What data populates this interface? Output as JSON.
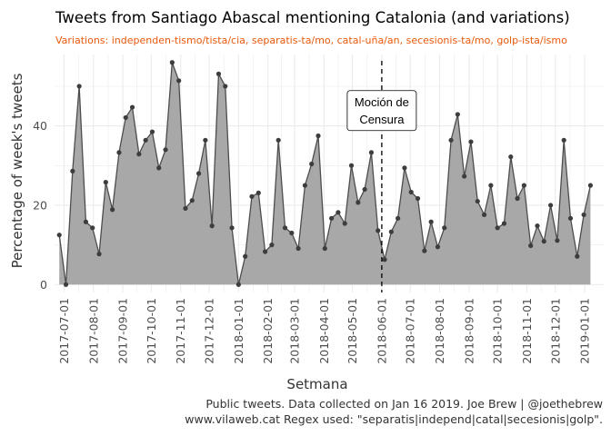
{
  "chart_data": {
    "type": "area",
    "title": "Tweets from Santiago Abascal mentioning Catalonia (and variations)",
    "subtitle": "Variations: independen-tismo/tista/cia, separatis-ta/mo, catal-uña/an, secesionis-ta/mo, golp-ista/ismo",
    "xlabel": "Setmana",
    "ylabel": "Percentage of week's tweets",
    "caption_line1": "Public tweets. Data collected on Jan 16 2019. Joe Brew | @joethebrew",
    "caption_line2": "www.vilaweb.cat Regex used: \"separatis|independ|catal|secesionis|golp\".",
    "x_ticks": [
      "2017-07-01",
      "2017-08-01",
      "2017-09-01",
      "2017-10-01",
      "2017-11-01",
      "2017-12-01",
      "2018-01-01",
      "2018-02-01",
      "2018-03-01",
      "2018-04-01",
      "2018-05-01",
      "2018-06-01",
      "2018-07-01",
      "2018-08-01",
      "2018-09-01",
      "2018-10-01",
      "2018-11-01",
      "2018-12-01",
      "2019-01-01"
    ],
    "y_ticks": [
      0,
      20,
      40
    ],
    "ylim": [
      -2,
      58
    ],
    "xlim": [
      "2017-06-21",
      "2019-01-21"
    ],
    "grid": true,
    "colors": {
      "area": "#a8a8a8",
      "line": "#4d4d4d",
      "points": "#3d3d3d",
      "grid": "#ebebeb",
      "subtitle": "#e8590c"
    },
    "annotation": {
      "date": "2018-06-01",
      "label_line1": "Moción de",
      "label_line2": "Censura",
      "y": 45
    },
    "x": [
      "2017-06-26",
      "2017-07-03",
      "2017-07-10",
      "2017-07-17",
      "2017-07-24",
      "2017-07-31",
      "2017-08-07",
      "2017-08-14",
      "2017-08-21",
      "2017-08-28",
      "2017-09-04",
      "2017-09-11",
      "2017-09-18",
      "2017-09-25",
      "2017-10-02",
      "2017-10-09",
      "2017-10-16",
      "2017-10-23",
      "2017-10-30",
      "2017-11-06",
      "2017-11-13",
      "2017-11-20",
      "2017-11-27",
      "2017-12-04",
      "2017-12-11",
      "2017-12-18",
      "2017-12-25",
      "2018-01-01",
      "2018-01-08",
      "2018-01-15",
      "2018-01-22",
      "2018-01-29",
      "2018-02-05",
      "2018-02-12",
      "2018-02-19",
      "2018-02-26",
      "2018-03-05",
      "2018-03-12",
      "2018-03-19",
      "2018-03-26",
      "2018-04-02",
      "2018-04-09",
      "2018-04-16",
      "2018-04-23",
      "2018-04-30",
      "2018-05-07",
      "2018-05-14",
      "2018-05-21",
      "2018-05-28",
      "2018-06-04",
      "2018-06-11",
      "2018-06-18",
      "2018-06-25",
      "2018-07-02",
      "2018-07-09",
      "2018-07-16",
      "2018-07-23",
      "2018-07-30",
      "2018-08-06",
      "2018-08-13",
      "2018-08-20",
      "2018-08-27",
      "2018-09-03",
      "2018-09-10",
      "2018-09-17",
      "2018-09-24",
      "2018-10-01",
      "2018-10-08",
      "2018-10-15",
      "2018-10-22",
      "2018-10-29",
      "2018-11-05",
      "2018-11-12",
      "2018-11-19",
      "2018-11-26",
      "2018-12-03",
      "2018-12-10",
      "2018-12-17",
      "2018-12-24",
      "2018-12-31",
      "2019-01-07"
    ],
    "y": [
      12.5,
      0,
      28.6,
      50,
      15.8,
      14.3,
      7.7,
      25.8,
      18.9,
      33.3,
      42.1,
      44.7,
      32.9,
      36.4,
      38.5,
      29.4,
      34,
      56,
      51.4,
      19.2,
      21.2,
      28,
      36.4,
      14.8,
      53.1,
      50,
      14.3,
      0,
      7.1,
      22.2,
      23.1,
      8.3,
      10,
      36.4,
      14.3,
      13,
      9.1,
      25,
      30.4,
      37.5,
      9.1,
      16.7,
      18.2,
      15.4,
      30,
      20.7,
      24,
      33.3,
      13.6,
      6.3,
      13.3,
      16.7,
      29.4,
      23.3,
      21.7,
      8.5,
      15.8,
      9.5,
      14.3,
      36.4,
      42.9,
      27.3,
      36,
      21,
      17.6,
      25,
      14.3,
      15.4,
      32.2,
      21.7,
      25,
      9.8,
      14.8,
      10.9,
      20,
      11.1,
      36.4,
      16.7,
      7.1,
      17.6,
      25
    ]
  }
}
